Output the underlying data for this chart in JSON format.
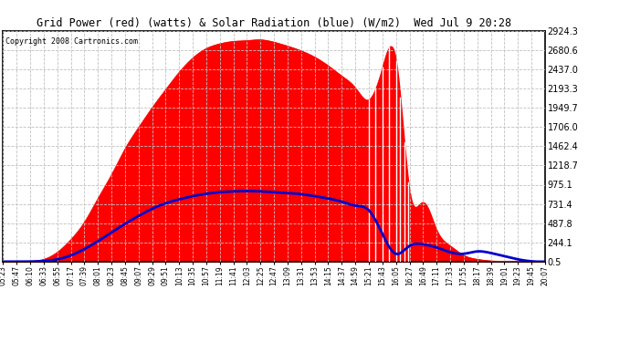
{
  "title": "Grid Power (red) (watts) & Solar Radiation (blue) (W/m2)  Wed Jul 9 20:28",
  "copyright": "Copyright 2008 Cartronics.com",
  "ylabel_ticks": [
    0.5,
    244.1,
    487.8,
    731.4,
    975.1,
    1218.7,
    1462.4,
    1706.0,
    1949.7,
    2193.3,
    2437.0,
    2680.6,
    2924.3
  ],
  "ymin": 0.5,
  "ymax": 2924.3,
  "bg_color": "#ffffff",
  "plot_bg": "#ffffff",
  "grid_color": "#c0c0c0",
  "red_color": "#ff0000",
  "blue_color": "#0000cc",
  "fill_color": "#ff0000",
  "x_labels": [
    "05:23",
    "05:47",
    "06:10",
    "06:33",
    "06:55",
    "07:17",
    "07:39",
    "08:01",
    "08:23",
    "08:45",
    "09:07",
    "09:29",
    "09:51",
    "10:13",
    "10:35",
    "10:57",
    "11:19",
    "11:41",
    "12:03",
    "12:25",
    "12:47",
    "13:09",
    "13:31",
    "13:53",
    "14:15",
    "14:37",
    "14:59",
    "15:21",
    "15:43",
    "16:05",
    "16:27",
    "16:49",
    "17:11",
    "17:33",
    "17:55",
    "18:17",
    "18:39",
    "19:01",
    "19:23",
    "19:45",
    "20:07"
  ]
}
